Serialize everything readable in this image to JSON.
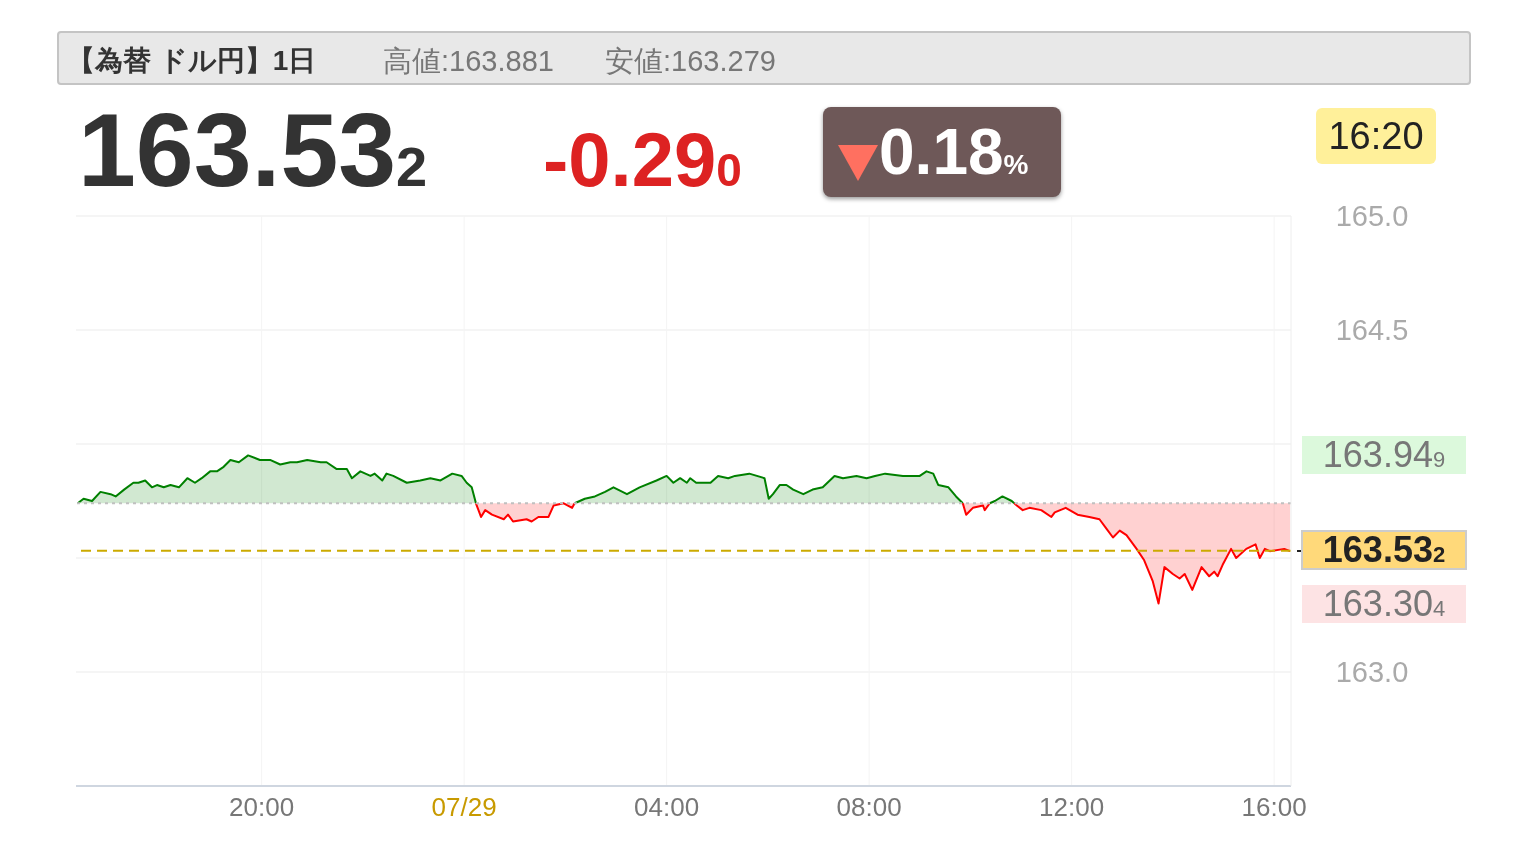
{
  "chart_data": {
    "type": "area",
    "title": "【為替 ドル円】1日",
    "annotations": [
      "高値:163.881",
      "安値:163.279",
      "163.532",
      "-0.290",
      "0.18%",
      "16:20",
      "163.949",
      "163.304"
    ],
    "x": [
      "--07-28T16:22",
      "--07-28T16:29",
      "--07-28T16:39",
      "--07-28T16:49",
      "--07-28T17:01",
      "--07-28T17:07",
      "--07-28T17:17",
      "--07-28T17:28",
      "--07-28T17:34",
      "--07-28T17:42",
      "--07-28T17:50",
      "--07-28T17:56",
      "--07-28T18:04",
      "--07-28T18:12",
      "--07-28T18:22",
      "--07-28T18:32",
      "--07-28T18:41",
      "--07-28T18:49",
      "--07-28T18:59",
      "--07-28T19:07",
      "--07-28T19:15",
      "--07-28T19:23",
      "--07-28T19:33",
      "--07-28T19:44",
      "--07-28T19:58",
      "--07-28T20:10",
      "--07-28T20:22",
      "--07-28T20:34",
      "--07-28T20:42",
      "--07-28T20:54",
      "--07-28T21:10",
      "--07-28T21:17",
      "--07-28T21:29",
      "--07-28T21:41",
      "--07-28T21:47",
      "--07-28T21:57",
      "--07-28T22:09",
      "--07-28T22:14",
      "--07-28T22:23",
      "--07-28T22:28",
      "--07-28T22:36",
      "--07-28T22:52",
      "--07-28T23:08",
      "--07-28T23:20",
      "--07-28T23:32",
      "--07-28T23:46",
      "--07-28T23:57",
      "--07-29T00:03",
      "--07-29T00:09",
      "--07-29T00:14",
      "--07-29T00:20",
      "--07-29T00:25",
      "--07-29T00:33",
      "--07-29T00:47",
      "--07-29T00:52",
      "--07-29T00:58",
      "--07-29T01:14",
      "--07-29T01:20",
      "--07-29T01:28",
      "--07-29T01:40",
      "--07-29T01:46",
      "--07-29T01:58",
      "--07-29T02:08",
      "--07-29T02:11",
      "--07-29T02:23",
      "--07-29T02:35",
      "--07-29T02:47",
      "--07-29T02:57",
      "--07-29T03:13",
      "--07-29T03:28",
      "--07-29T03:48",
      "--07-29T04:00",
      "--07-29T04:08",
      "--07-29T04:16",
      "--07-29T04:24",
      "--07-29T04:28",
      "--07-29T04:35",
      "--07-29T04:52",
      "--07-29T05:01",
      "--07-29T05:13",
      "--07-29T05:21",
      "--07-29T05:38",
      "--07-29T05:56",
      "--07-29T06:01",
      "--07-29T06:06",
      "--07-29T06:14",
      "--07-29T06:22",
      "--07-29T06:30",
      "--07-29T06:42",
      "--07-29T06:53",
      "--07-29T07:05",
      "--07-29T07:19",
      "--07-29T07:29",
      "--07-29T07:45",
      "--07-29T07:57",
      "--07-29T08:07",
      "--07-29T08:19",
      "--07-29T08:40",
      "--07-29T09:00",
      "--07-29T09:08",
      "--07-29T09:16",
      "--07-29T09:22",
      "--07-29T09:34",
      "--07-29T09:43",
      "--07-29T09:51",
      "--07-29T09:55",
      "--07-29T10:03",
      "--07-29T10:15",
      "--07-29T10:17",
      "--07-29T10:23",
      "--07-29T10:29",
      "--07-29T10:38",
      "--07-29T10:49",
      "--07-29T10:52",
      "--07-29T10:55",
      "--07-29T11:02",
      "--07-29T11:10",
      "--07-29T11:24",
      "--07-29T11:36",
      "--07-29T11:40",
      "--07-29T11:53",
      "--07-29T12:07",
      "--07-29T12:21",
      "--07-29T12:33",
      "--07-29T12:41",
      "--07-29T12:49",
      "--07-29T12:57",
      "--07-29T13:05",
      "--07-29T13:17",
      "--07-29T13:26",
      "--07-29T13:36",
      "--07-29T13:43",
      "--07-29T13:50",
      "--07-29T14:00",
      "--07-29T14:08",
      "--07-29T14:14",
      "--07-29T14:23",
      "--07-29T14:34",
      "--07-29T14:43",
      "--07-29T14:49",
      "--07-29T14:53",
      "--07-29T14:59",
      "--07-29T15:09",
      "--07-29T15:15",
      "--07-29T15:27",
      "--07-29T15:38",
      "--07-29T15:43",
      "--07-29T15:49",
      "--07-29T15:55",
      "--07-29T16:12",
      "--07-29T16:19"
    ],
    "series": [
      {
        "type": "area",
        "color": "#008000",
        "values": [
          163.74,
          163.76,
          163.75,
          163.79,
          163.78,
          163.77,
          163.8,
          163.83,
          163.83,
          163.84,
          163.81,
          163.82,
          163.81,
          163.82,
          163.81,
          163.85,
          163.83,
          163.85,
          163.88,
          163.88,
          163.9,
          163.93,
          163.92,
          163.95,
          163.93,
          163.93,
          163.91,
          163.92,
          163.92,
          163.93,
          163.92,
          163.92,
          163.89,
          163.89,
          163.85,
          163.88,
          163.86,
          163.87,
          163.84,
          163.87,
          163.86,
          163.83,
          163.84,
          163.85,
          163.84,
          163.87,
          163.86,
          163.83,
          163.81,
          163.74,
          null,
          null,
          null,
          null,
          null,
          null,
          null,
          null,
          null,
          null,
          null,
          null,
          null,
          163.74,
          163.76,
          163.77,
          163.79,
          163.81,
          163.78,
          163.81,
          163.84,
          163.86,
          163.83,
          163.85,
          163.83,
          163.85,
          163.83,
          163.83,
          163.86,
          163.85,
          163.86,
          163.87,
          163.85,
          163.76,
          163.78,
          163.82,
          163.82,
          163.8,
          163.78,
          163.8,
          163.81,
          163.86,
          163.85,
          163.86,
          163.85,
          163.86,
          163.87,
          163.86,
          163.86,
          163.88,
          163.87,
          163.82,
          163.81,
          163.77,
          163.74,
          null,
          null,
          null,
          null,
          163.74,
          163.75,
          163.77,
          163.75,
          163.74,
          null,
          null,
          null,
          null,
          null,
          null,
          null,
          null,
          null,
          null,
          null,
          null,
          null,
          null,
          null,
          null,
          null,
          null,
          null,
          null,
          null,
          null,
          null,
          null,
          null,
          null,
          null,
          null,
          null,
          null,
          null,
          null,
          null,
          null,
          null,
          null,
          null
        ]
      },
      {
        "type": "line",
        "color": "#ff0000",
        "values": [
          null,
          null,
          null,
          null,
          null,
          null,
          null,
          null,
          null,
          null,
          null,
          null,
          null,
          null,
          null,
          null,
          null,
          null,
          null,
          null,
          null,
          null,
          null,
          null,
          null,
          null,
          null,
          null,
          null,
          null,
          null,
          null,
          null,
          null,
          null,
          null,
          null,
          null,
          null,
          null,
          null,
          null,
          null,
          null,
          null,
          null,
          null,
          null,
          null,
          163.74,
          163.68,
          163.71,
          163.69,
          163.67,
          163.69,
          163.66,
          163.67,
          163.66,
          163.68,
          163.68,
          163.73,
          163.74,
          163.72,
          163.74,
          null,
          null,
          null,
          null,
          null,
          null,
          null,
          null,
          null,
          null,
          null,
          null,
          null,
          null,
          null,
          null,
          null,
          null,
          null,
          null,
          null,
          null,
          null,
          null,
          null,
          null,
          null,
          null,
          null,
          null,
          null,
          null,
          null,
          null,
          null,
          null,
          null,
          null,
          null,
          null,
          163.74,
          163.69,
          163.72,
          163.73,
          163.71,
          163.74,
          null,
          null,
          null,
          163.74,
          163.73,
          163.71,
          163.72,
          163.71,
          163.68,
          163.7,
          163.72,
          163.69,
          163.68,
          163.67,
          163.63,
          163.59,
          163.62,
          163.6,
          163.54,
          163.49,
          163.4,
          163.3,
          163.46,
          163.43,
          163.41,
          163.43,
          163.36,
          163.46,
          163.42,
          163.44,
          163.42,
          163.47,
          163.54,
          163.5,
          163.54,
          163.56,
          163.5,
          163.54,
          163.53,
          163.54,
          163.53
        ],
        "lower": [
          null,
          null,
          null,
          null,
          null,
          null,
          null,
          null,
          null,
          null,
          null,
          null,
          null,
          null,
          null,
          null,
          null,
          null,
          null,
          null,
          null,
          null,
          null,
          null,
          null,
          null,
          null,
          null,
          null,
          null,
          null,
          null,
          null,
          null,
          null,
          null,
          null,
          null,
          null,
          null,
          null,
          null,
          null,
          null,
          null,
          null,
          null,
          null,
          null,
          163.74,
          163.68,
          163.71,
          163.69,
          163.67,
          163.69,
          163.66,
          163.67,
          163.66,
          163.68,
          163.68,
          163.73,
          163.74,
          163.72,
          163.74,
          null,
          null,
          null,
          null,
          null,
          null,
          null,
          null,
          null,
          null,
          null,
          null,
          null,
          null,
          null,
          null,
          null,
          null,
          null,
          null,
          null,
          null,
          null,
          null,
          null,
          null,
          null,
          null,
          null,
          null,
          null,
          null,
          null,
          null,
          null,
          null,
          null,
          null,
          null,
          null,
          163.74,
          163.69,
          163.72,
          163.73,
          163.71,
          163.74,
          null,
          null,
          null,
          163.74,
          163.73,
          163.71,
          163.72,
          163.71,
          163.68,
          163.7,
          163.72,
          163.69,
          163.68,
          163.67,
          163.63,
          163.59,
          163.62,
          163.6,
          163.54,
          163.49,
          163.4,
          163.3,
          163.46,
          163.43,
          163.41,
          163.43,
          163.36,
          163.46,
          163.42,
          163.44,
          163.42,
          163.47,
          163.54,
          163.5,
          163.54,
          163.56,
          163.5,
          163.54,
          163.53,
          163.54,
          163.53
        ],
        "upper": [
          null,
          null,
          null,
          null,
          null,
          null,
          null,
          null,
          null,
          null,
          null,
          null,
          null,
          null,
          null,
          null,
          null,
          null,
          null,
          null,
          null,
          null,
          null,
          null,
          null,
          null,
          null,
          null,
          null,
          null,
          null,
          null,
          null,
          null,
          null,
          null,
          null,
          null,
          null,
          null,
          null,
          null,
          null,
          null,
          null,
          null,
          null,
          null,
          null,
          163.74,
          163.74,
          163.74,
          163.74,
          163.74,
          163.74,
          163.74,
          163.74,
          163.74,
          163.74,
          163.74,
          163.74,
          163.74,
          163.74,
          163.74,
          null,
          null,
          null,
          null,
          null,
          null,
          null,
          null,
          null,
          null,
          null,
          null,
          null,
          null,
          null,
          null,
          null,
          null,
          null,
          null,
          null,
          null,
          null,
          null,
          null,
          null,
          null,
          null,
          null,
          null,
          null,
          null,
          null,
          null,
          null,
          null,
          null,
          null,
          null,
          null,
          163.74,
          163.74,
          163.74,
          163.74,
          163.74,
          163.74,
          null,
          null,
          null,
          163.74,
          163.74,
          163.74,
          163.74,
          163.74,
          163.74,
          163.74,
          163.74,
          163.74,
          163.74,
          163.74,
          163.74,
          163.74,
          163.74,
          163.74,
          163.74,
          163.74,
          163.74,
          163.74,
          163.74,
          163.74,
          163.74,
          163.74,
          163.74,
          163.74,
          163.74,
          163.74,
          163.74,
          163.74,
          163.74,
          163.74,
          163.74,
          163.74,
          163.74,
          163.74,
          163.74,
          163.74,
          163.74
        ]
      }
    ],
    "xlim": [
      "--07-28T16:20",
      "--07-29T16:20"
    ],
    "xticks": [
      {
        "value": "--07-28T20:00",
        "label": "20:00"
      },
      {
        "value": "--07-29T00:00",
        "label": "07/29"
      },
      {
        "value": "--07-29T04:00",
        "label": "04:00"
      },
      {
        "value": "--07-29T08:00",
        "label": "08:00"
      },
      {
        "value": "--07-29T12:00",
        "label": "12:00"
      },
      {
        "value": "--07-29T16:00",
        "label": "16:00"
      }
    ],
    "ylim": [
      162.5,
      165.0
    ],
    "yticks": [
      {
        "value": 163.0,
        "label": "163.0"
      },
      {
        "value": 163.5,
        "label": null
      },
      {
        "value": 164.0,
        "label": null
      },
      {
        "value": 164.5,
        "label": "164.5"
      },
      {
        "value": 165.0,
        "label": "165.0"
      }
    ],
    "ref_lines": [
      {
        "axis": "y",
        "value": 163.74,
        "color": "#c0c0c0",
        "line_style": "dotted"
      },
      {
        "axis": "y",
        "value": 163.532,
        "label": "163.532",
        "color": "#ccaa00",
        "line_style": "dashed"
      }
    ],
    "grid": true
  }
}
